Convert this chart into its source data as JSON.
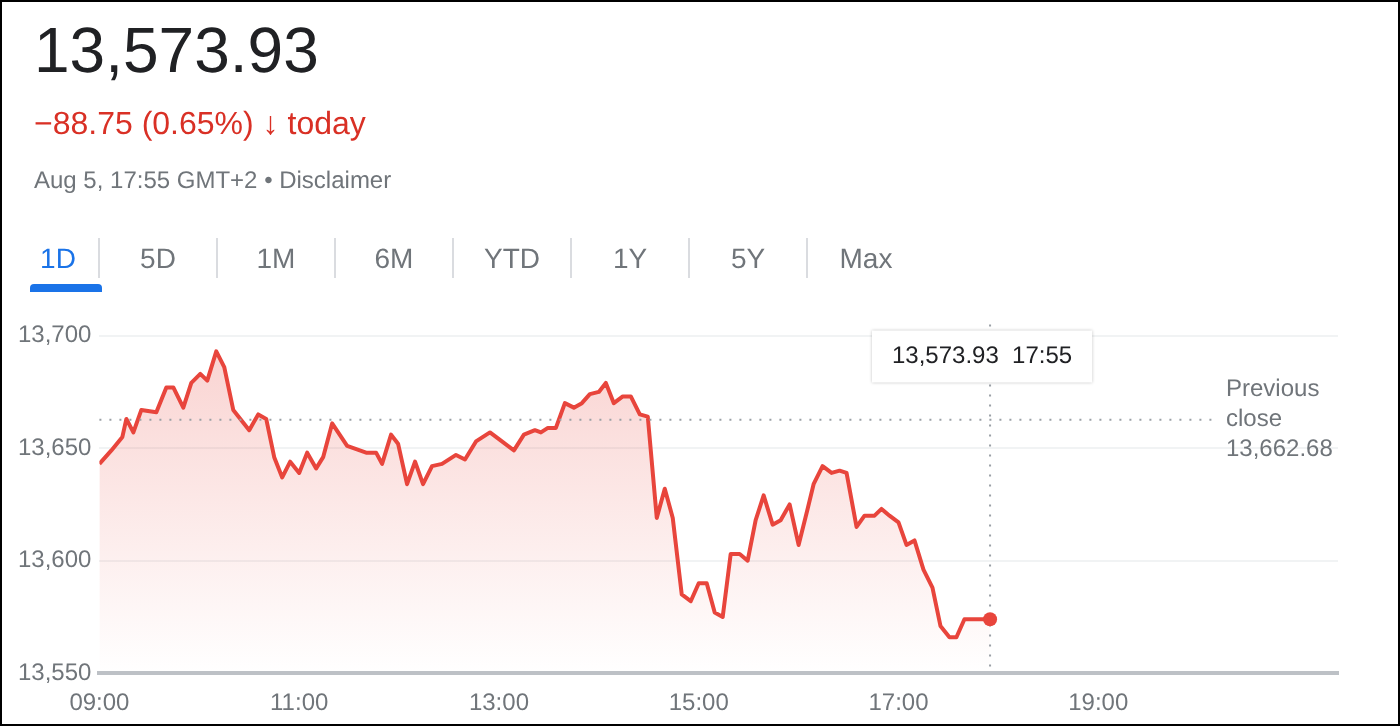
{
  "chart_data": {
    "type": "area",
    "title": "13,573.93",
    "subtitle": "−88.75 (0.65%) ↓ today",
    "annotations": [
      "Aug 5, 17:55 GMT+2 • Disclaimer",
      "1D",
      "5D",
      "1M",
      "6M",
      "YTD",
      "1Y",
      "5Y",
      "Max",
      "13,573.93  17:55"
    ],
    "x": [
      9.0,
      9.12,
      9.23,
      9.27,
      9.34,
      9.42,
      9.57,
      9.67,
      9.74,
      9.84,
      9.92,
      10.01,
      10.08,
      10.17,
      10.25,
      10.34,
      10.5,
      10.59,
      10.67,
      10.75,
      10.83,
      10.91,
      11.0,
      11.08,
      11.17,
      11.24,
      11.33,
      11.48,
      11.67,
      11.77,
      11.83,
      11.92,
      11.99,
      12.08,
      12.16,
      12.24,
      12.33,
      12.43,
      12.57,
      12.66,
      12.77,
      12.91,
      13.0,
      13.15,
      13.25,
      13.36,
      13.42,
      13.49,
      13.57,
      13.66,
      13.75,
      13.83,
      13.91,
      14.0,
      14.07,
      14.15,
      14.24,
      14.32,
      14.41,
      14.49,
      14.58,
      14.66,
      14.74,
      14.83,
      14.92,
      15.0,
      15.08,
      15.16,
      15.24,
      15.32,
      15.41,
      15.49,
      15.57,
      15.65,
      15.74,
      15.82,
      15.91,
      16.0,
      16.09,
      16.15,
      16.24,
      16.33,
      16.41,
      16.48,
      16.58,
      16.66,
      16.76,
      16.83,
      16.91,
      17.0,
      17.08,
      17.16,
      17.25,
      17.34,
      17.42,
      17.51,
      17.58,
      17.66,
      17.75,
      17.9167
    ],
    "series": [
      {
        "color": "#e8453c",
        "values": [
          13643,
          13649,
          13655,
          13663,
          13657,
          13667,
          13666,
          13677,
          13677,
          13668,
          13679,
          13683,
          13680,
          13693,
          13686,
          13667,
          13658,
          13665,
          13663,
          13646,
          13637,
          13644,
          13639,
          13648,
          13641,
          13646,
          13661,
          13651,
          13648,
          13648,
          13643,
          13656,
          13652,
          13634,
          13644,
          13634,
          13642,
          13643,
          13647,
          13645,
          13653,
          13657,
          13654,
          13649,
          13656,
          13658,
          13657,
          13659,
          13659,
          13670,
          13668,
          13670,
          13674,
          13675,
          13679,
          13670,
          13673,
          13673,
          13665,
          13664,
          13619,
          13632,
          13619,
          13585,
          13582,
          13590,
          13590,
          13577,
          13575,
          13603,
          13603,
          13600,
          13618,
          13629,
          13616,
          13618,
          13625,
          13607,
          13623,
          13634,
          13642,
          13639,
          13640,
          13639,
          13615,
          13620,
          13620,
          13623,
          13620,
          13617,
          13607,
          13609,
          13596,
          13588,
          13571,
          13566,
          13566,
          13574,
          13574,
          13574
        ]
      }
    ],
    "xlim": [
      9,
      21.4
    ],
    "xticks": [
      {
        "value": 9,
        "label": "09:00"
      },
      {
        "value": 11,
        "label": "11:00"
      },
      {
        "value": 13,
        "label": "13:00"
      },
      {
        "value": 15,
        "label": "15:00"
      },
      {
        "value": 17,
        "label": "17:00"
      },
      {
        "value": 19,
        "label": "19:00"
      }
    ],
    "ylim": [
      13550,
      13705
    ],
    "yticks": [
      {
        "value": 13550,
        "label": "13,550"
      },
      {
        "value": 13600,
        "label": "13,600"
      },
      {
        "value": 13650,
        "label": "13,650"
      },
      {
        "value": 13700,
        "label": "13,700"
      }
    ],
    "ref_lines": [
      {
        "axis": "y",
        "value": 13662.68,
        "label": "Previous close 13,662.68",
        "line_style": "dotted"
      },
      {
        "axis": "x",
        "value": 17.9167,
        "line_style": "dotted"
      }
    ],
    "grid": "y",
    "legend": false,
    "marker": "none",
    "line_style": "solid"
  }
}
